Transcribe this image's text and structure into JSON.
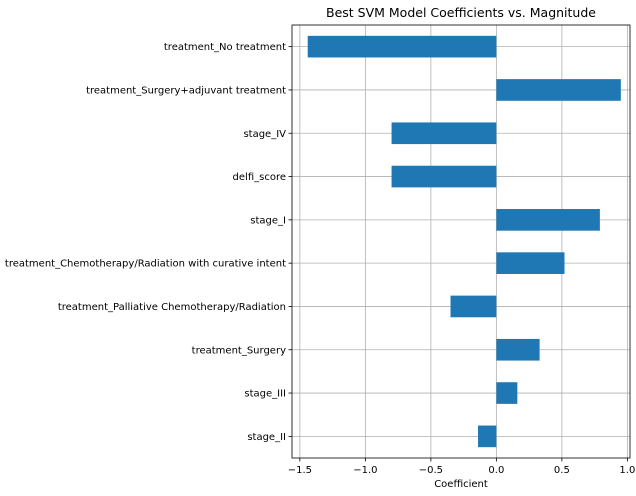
{
  "chart_data": {
    "type": "bar",
    "orientation": "horizontal",
    "title": "Best SVM Model Coefficients vs. Magnitude",
    "xlabel": "Coefficient",
    "ylabel": "",
    "xlim": [
      -1.56,
      1.02
    ],
    "xticks": [
      -1.5,
      -1.0,
      -0.5,
      0.0,
      0.5,
      1.0
    ],
    "xtick_labels": [
      "−1.5",
      "−1.0",
      "−0.5",
      "0.0",
      "0.5",
      "1.0"
    ],
    "grid": true,
    "bar_color": "#1f77b4",
    "categories": [
      "treatment_No treatment",
      "treatment_Surgery+adjuvant treatment",
      "stage_IV",
      "delfi_score",
      "stage_I",
      "treatment_Chemotherapy/Radiation with curative intent",
      "treatment_Palliative Chemotherapy/Radiation",
      "treatment_Surgery",
      "stage_III",
      "stage_II"
    ],
    "values": [
      -1.44,
      0.95,
      -0.8,
      -0.8,
      0.79,
      0.52,
      -0.35,
      0.33,
      0.16,
      -0.14
    ]
  }
}
